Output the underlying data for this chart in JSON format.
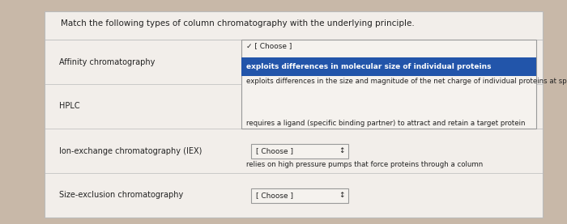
{
  "title": "Match the following types of column chromatography with the underlying principle.",
  "bg_color": "#c8b8a8",
  "panel_bg": "#ddd8cc",
  "panel_white": "#f2eeea",
  "methods": [
    "Affinity chromatography",
    "HPLC",
    "Ion-exchange chromatography (IEX)",
    "Size-exclusion chromatography"
  ],
  "dropdown_open_label": "✓ [ Choose ]",
  "dropdown_closed_label": "[ Choose ]",
  "highlighted_option": "exploits differences in molecular size of individual proteins",
  "highlight_color": "#2255aa",
  "highlight_text_color": "#ffffff",
  "dropdown_options": [
    "exploits differences in the size and magnitude of the net charge of individual proteins at specific pHs",
    "requires a ligand (specific binding partner) to attract and retain a target protein",
    "relies on high pressure pumps that force proteins through a column"
  ],
  "dropdown_bg": "#f5f2ee",
  "dropdown_border": "#999999",
  "title_fontsize": 7.5,
  "method_fontsize": 7.0,
  "option_fontsize": 6.5,
  "text_color": "#222222",
  "divider_color": "#bbbbbb",
  "checkmark_color": "#333333"
}
